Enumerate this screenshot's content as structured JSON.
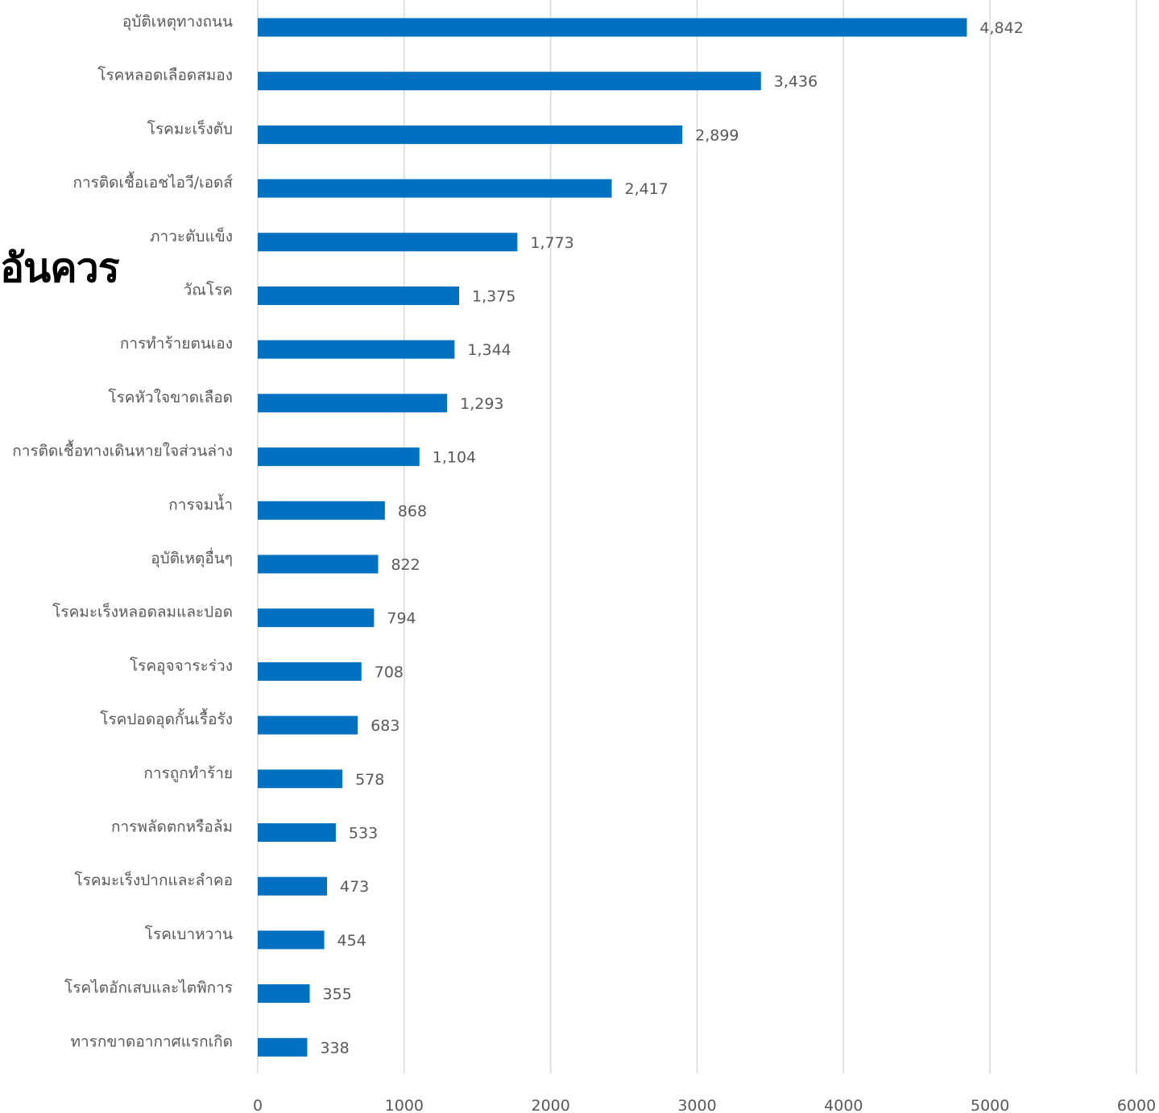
{
  "overlay_text": "อันควร",
  "chart_data": {
    "type": "bar",
    "orientation": "horizontal",
    "categories": [
      "อุบัติเหตุทางถนน",
      "โรคหลอดเลือดสมอง",
      "โรคมะเร็งตับ",
      "การติดเชื้อเอชไอวี/เอดส์",
      "ภาวะตับแข็ง",
      "วัณโรค",
      "การทำร้ายตนเอง",
      "โรคหัวใจขาดเลือด",
      "การติดเชื้อทางเดินหายใจส่วนล่าง",
      "การจมน้ำ",
      "อุบัติเหตุอื่นๆ",
      "โรคมะเร็งหลอดลมและปอด",
      "โรคอุจจาระร่วง",
      "โรคปอดอุดกั้นเรื้อรัง",
      "การถูกทำร้าย",
      "การพลัดตกหรือล้ม",
      "โรคมะเร็งปากและลำคอ",
      "โรคเบาหวาน",
      "โรคไตอักเสบและไตพิการ",
      "ทารกขาดอากาศแรกเกิด"
    ],
    "values": [
      4842,
      3436,
      2899,
      2417,
      1773,
      1375,
      1344,
      1293,
      1104,
      868,
      822,
      794,
      708,
      683,
      578,
      533,
      473,
      454,
      355,
      338
    ],
    "value_labels": [
      "4,842",
      "3,436",
      "2,899",
      "2,417",
      "1,773",
      "1,375",
      "1,344",
      "1,293",
      "1,104",
      "868",
      "822",
      "794",
      "708",
      "683",
      "578",
      "533",
      "473",
      "454",
      "355",
      "338"
    ],
    "xlim": [
      0,
      6000
    ],
    "xticks": [
      "0",
      "1000",
      "2000",
      "3000",
      "4000",
      "5000",
      "6000"
    ],
    "grid": "vertical",
    "bar_color": "#0070C0",
    "grid_color": "#D9D9D9",
    "text_color": "#595959"
  }
}
